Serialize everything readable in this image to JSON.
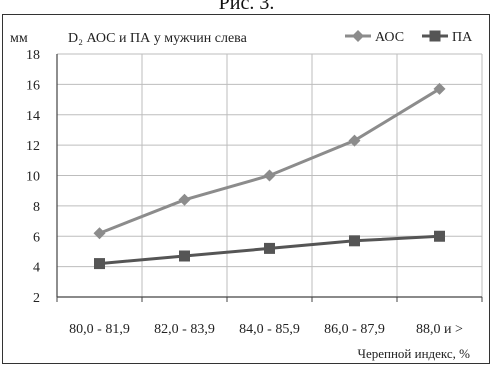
{
  "caption": "Рис. 3.",
  "chart_data": {
    "type": "line",
    "title": "D₂ АОС и ПА у мужчин слева",
    "ylabel": "мм",
    "xlabel": "Черепной индекс, %",
    "categories": [
      "80,0 - 81,9",
      "82,0 - 83,9",
      "84,0 - 85,9",
      "86,0 - 87,9",
      "88,0 и >"
    ],
    "ylim": [
      2,
      18
    ],
    "yticks": [
      2,
      4,
      6,
      8,
      10,
      12,
      14,
      16,
      18
    ],
    "ytick_labels": [
      "2",
      "4",
      "6",
      "8",
      "10",
      "12",
      "14",
      "16",
      "18"
    ],
    "grid": true,
    "legend": "top-right",
    "series": [
      {
        "name": "АОС",
        "marker": "diamond",
        "color": "#8c8c8c",
        "values": [
          6.2,
          8.4,
          10.0,
          12.3,
          15.7
        ]
      },
      {
        "name": "ПА",
        "marker": "square",
        "color": "#555555",
        "values": [
          4.2,
          4.7,
          5.2,
          5.7,
          6.0
        ]
      }
    ]
  }
}
